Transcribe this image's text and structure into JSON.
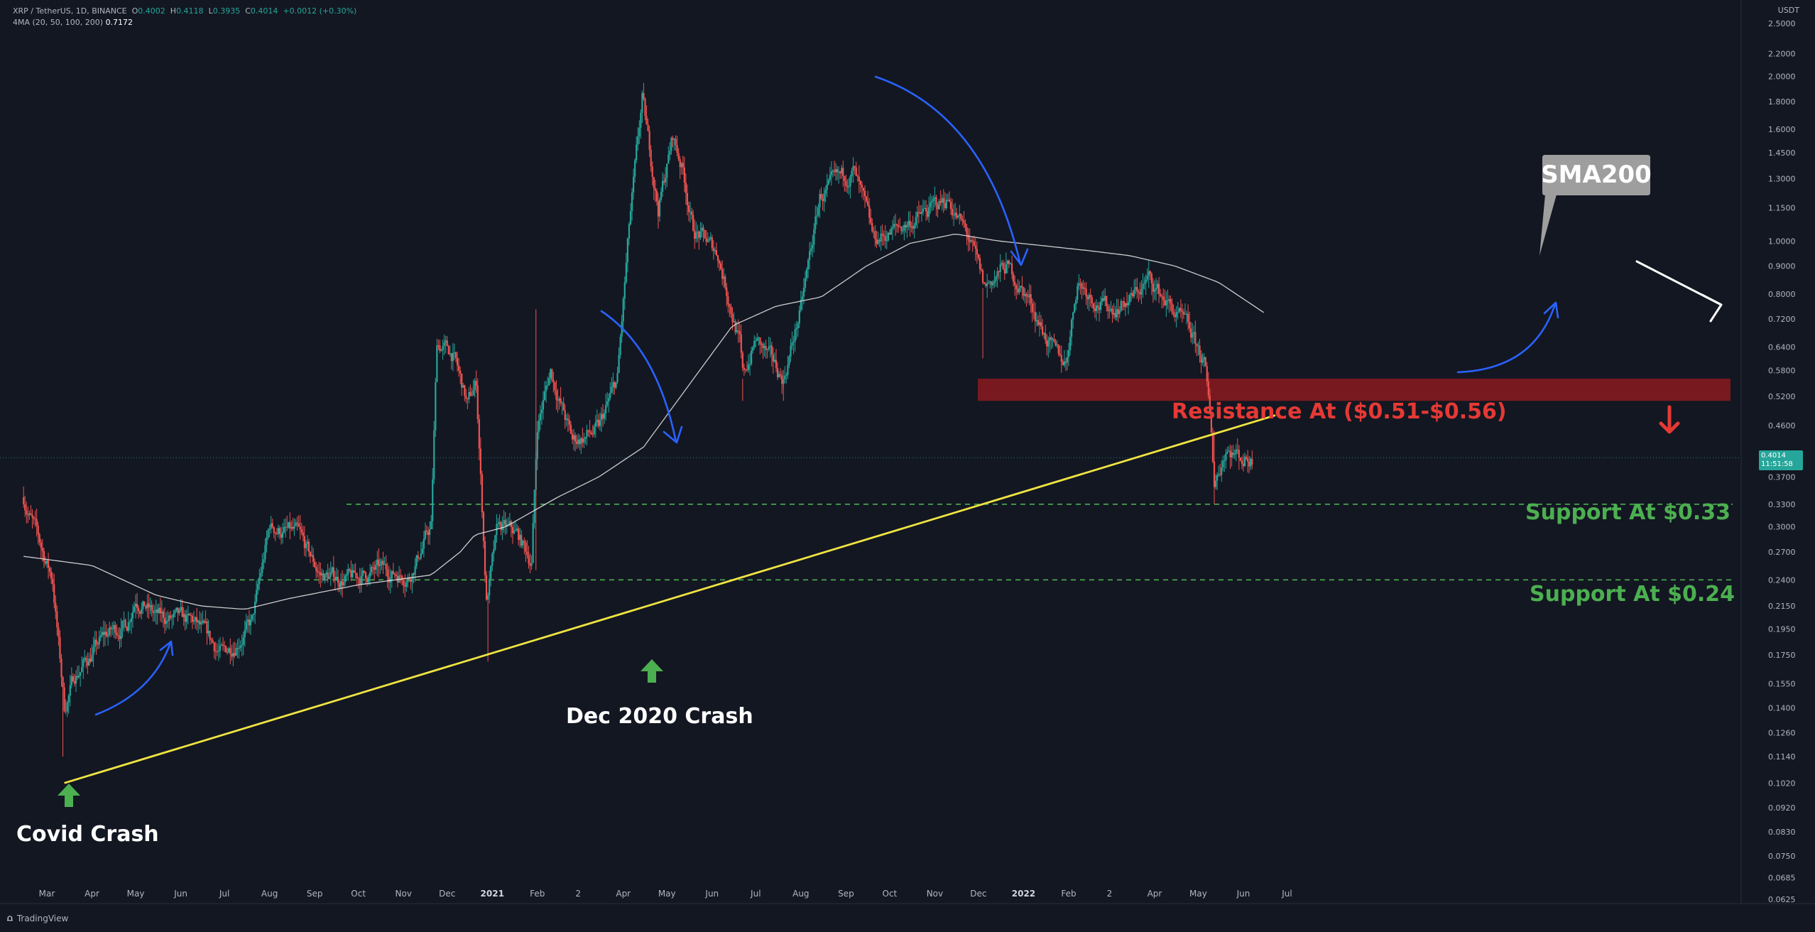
{
  "header": {
    "symbol": "XRP / TetherUS, 1D, BINANCE",
    "o_label": "O",
    "o": "0.4002",
    "h_label": "H",
    "h": "0.4118",
    "l_label": "L",
    "l": "0.3935",
    "c_label": "C",
    "c": "0.4014",
    "change": "+0.0012 (+0.30%)",
    "ma_label": "4MA (20, 50, 100, 200)",
    "ma_value": "0.7172"
  },
  "currency": "USDT",
  "price_tag": {
    "price": "0.4014",
    "countdown": "11:51:58"
  },
  "branding": "TradingView",
  "colors": {
    "background": "#131722",
    "up": "#26a69a",
    "down": "#ef5350",
    "trendline": "#f0e442",
    "resistance": "#8b1a1f",
    "support": "#4caf50",
    "annotation_red": "#e53935",
    "annotation_green": "#4caf50",
    "curve_arrow": "#2962ff",
    "sma": "#e0e0e0"
  },
  "chart_data": {
    "type": "candlestick",
    "title": "",
    "xlabel": "",
    "ylabel": "",
    "y_scale": "log",
    "y_ticks": [
      "2.5000",
      "2.2000",
      "2.0000",
      "1.8000",
      "1.6000",
      "1.4500",
      "1.3000",
      "1.1500",
      "1.0000",
      "0.9000",
      "0.8000",
      "0.7200",
      "0.6400",
      "0.5800",
      "0.5200",
      "0.4600",
      "0.4014",
      "0.3700",
      "0.3300",
      "0.3000",
      "0.2700",
      "0.2400",
      "0.2150",
      "0.1950",
      "0.1750",
      "0.1550",
      "0.1400",
      "0.1260",
      "0.1140",
      "0.1020",
      "0.0920",
      "0.0830",
      "0.0750",
      "0.0685",
      "0.0625"
    ],
    "x_ticks": [
      "Mar",
      "Apr",
      "May",
      "Jun",
      "Jul",
      "Aug",
      "Sep",
      "Oct",
      "Nov",
      "Dec",
      "2021",
      "Feb",
      "2",
      "Apr",
      "May",
      "Jun",
      "Jul",
      "Aug",
      "Sep",
      "Oct",
      "Nov",
      "Dec",
      "2022",
      "Feb",
      "2",
      "Apr",
      "May",
      "Jun",
      "Jul"
    ],
    "price_anchors": [
      [
        "2020-02-14",
        0.34
      ],
      [
        "2020-02-25",
        0.28
      ],
      [
        "2020-03-05",
        0.24
      ],
      [
        "2020-03-12",
        0.15
      ],
      [
        "2020-03-13",
        0.14
      ],
      [
        "2020-03-20",
        0.16
      ],
      [
        "2020-04-10",
        0.19
      ],
      [
        "2020-04-25",
        0.2
      ],
      [
        "2020-05-01",
        0.225
      ],
      [
        "2020-05-15",
        0.205
      ],
      [
        "2020-06-10",
        0.2
      ],
      [
        "2020-06-30",
        0.175
      ],
      [
        "2020-07-20",
        0.2
      ],
      [
        "2020-08-01",
        0.3
      ],
      [
        "2020-08-20",
        0.29
      ],
      [
        "2020-09-05",
        0.245
      ],
      [
        "2020-09-25",
        0.24
      ],
      [
        "2020-10-15",
        0.25
      ],
      [
        "2020-11-05",
        0.245
      ],
      [
        "2020-11-20",
        0.3
      ],
      [
        "2020-11-24",
        0.65
      ],
      [
        "2020-12-05",
        0.62
      ],
      [
        "2020-12-15",
        0.5
      ],
      [
        "2020-12-21",
        0.55
      ],
      [
        "2020-12-28",
        0.22
      ],
      [
        "2021-01-05",
        0.3
      ],
      [
        "2021-01-18",
        0.29
      ],
      [
        "2021-01-28",
        0.26
      ],
      [
        "2021-02-01",
        0.46
      ],
      [
        "2021-02-10",
        0.58
      ],
      [
        "2021-02-25",
        0.43
      ],
      [
        "2021-03-15",
        0.45
      ],
      [
        "2021-03-28",
        0.56
      ],
      [
        "2021-04-05",
        1.05
      ],
      [
        "2021-04-14",
        1.8
      ],
      [
        "2021-04-25",
        1.15
      ],
      [
        "2021-05-05",
        1.55
      ],
      [
        "2021-05-12",
        1.35
      ],
      [
        "2021-05-19",
        1.05
      ],
      [
        "2021-06-05",
        0.95
      ],
      [
        "2021-06-20",
        0.65
      ],
      [
        "2021-06-22",
        0.56
      ],
      [
        "2021-07-01",
        0.66
      ],
      [
        "2021-07-20",
        0.56
      ],
      [
        "2021-08-01",
        0.75
      ],
      [
        "2021-08-14",
        1.2
      ],
      [
        "2021-09-06",
        1.35
      ],
      [
        "2021-09-20",
        1.0
      ],
      [
        "2021-10-05",
        1.05
      ],
      [
        "2021-10-20",
        1.1
      ],
      [
        "2021-11-10",
        1.2
      ],
      [
        "2021-11-25",
        1.0
      ],
      [
        "2021-12-05",
        0.82
      ],
      [
        "2021-12-20",
        0.9
      ],
      [
        "2022-01-05",
        0.78
      ],
      [
        "2022-01-22",
        0.62
      ],
      [
        "2022-01-30",
        0.6
      ],
      [
        "2022-02-07",
        0.85
      ],
      [
        "2022-02-20",
        0.78
      ],
      [
        "2022-03-01",
        0.75
      ],
      [
        "2022-03-15",
        0.78
      ],
      [
        "2022-03-28",
        0.85
      ],
      [
        "2022-04-10",
        0.77
      ],
      [
        "2022-04-25",
        0.68
      ],
      [
        "2022-05-05",
        0.6
      ],
      [
        "2022-05-10",
        0.45
      ],
      [
        "2022-05-12",
        0.36
      ],
      [
        "2022-05-20",
        0.42
      ],
      [
        "2022-06-01",
        0.4
      ],
      [
        "2022-06-07",
        0.4014
      ]
    ],
    "sma200_anchors": [
      [
        "2020-02-14",
        0.265
      ],
      [
        "2020-04-01",
        0.255
      ],
      [
        "2020-05-15",
        0.225
      ],
      [
        "2020-06-15",
        0.215
      ],
      [
        "2020-07-15",
        0.212
      ],
      [
        "2020-08-15",
        0.222
      ],
      [
        "2020-10-01",
        0.235
      ],
      [
        "2020-11-20",
        0.245
      ],
      [
        "2020-12-10",
        0.27
      ],
      [
        "2020-12-20",
        0.29
      ],
      [
        "2021-01-10",
        0.3
      ],
      [
        "2021-02-15",
        0.34
      ],
      [
        "2021-03-15",
        0.37
      ],
      [
        "2021-04-15",
        0.42
      ],
      [
        "2021-05-15",
        0.54
      ],
      [
        "2021-06-15",
        0.7
      ],
      [
        "2021-07-15",
        0.76
      ],
      [
        "2021-08-15",
        0.79
      ],
      [
        "2021-09-15",
        0.9
      ],
      [
        "2021-10-15",
        0.99
      ],
      [
        "2021-11-15",
        1.03
      ],
      [
        "2021-12-15",
        1.0
      ],
      [
        "2022-01-15",
        0.98
      ],
      [
        "2022-02-15",
        0.96
      ],
      [
        "2022-03-15",
        0.94
      ],
      [
        "2022-04-15",
        0.9
      ],
      [
        "2022-05-15",
        0.84
      ],
      [
        "2022-06-15",
        0.74
      ]
    ],
    "ascending_trendline": [
      [
        "2020-03-13",
        0.102
      ],
      [
        "2022-06-23",
        0.48
      ]
    ],
    "resistance_zone": [
      0.51,
      0.56
    ],
    "support_levels": [
      0.33,
      0.24
    ],
    "current_price": 0.4014
  },
  "annotations": {
    "resistance": "Resistance At ($0.51-$0.56)",
    "support_033": "Support At $0.33",
    "support_024": "Support At $0.24",
    "covid": "Covid Crash",
    "dec2020": "Dec 2020 Crash",
    "sma200": "SMA200"
  }
}
